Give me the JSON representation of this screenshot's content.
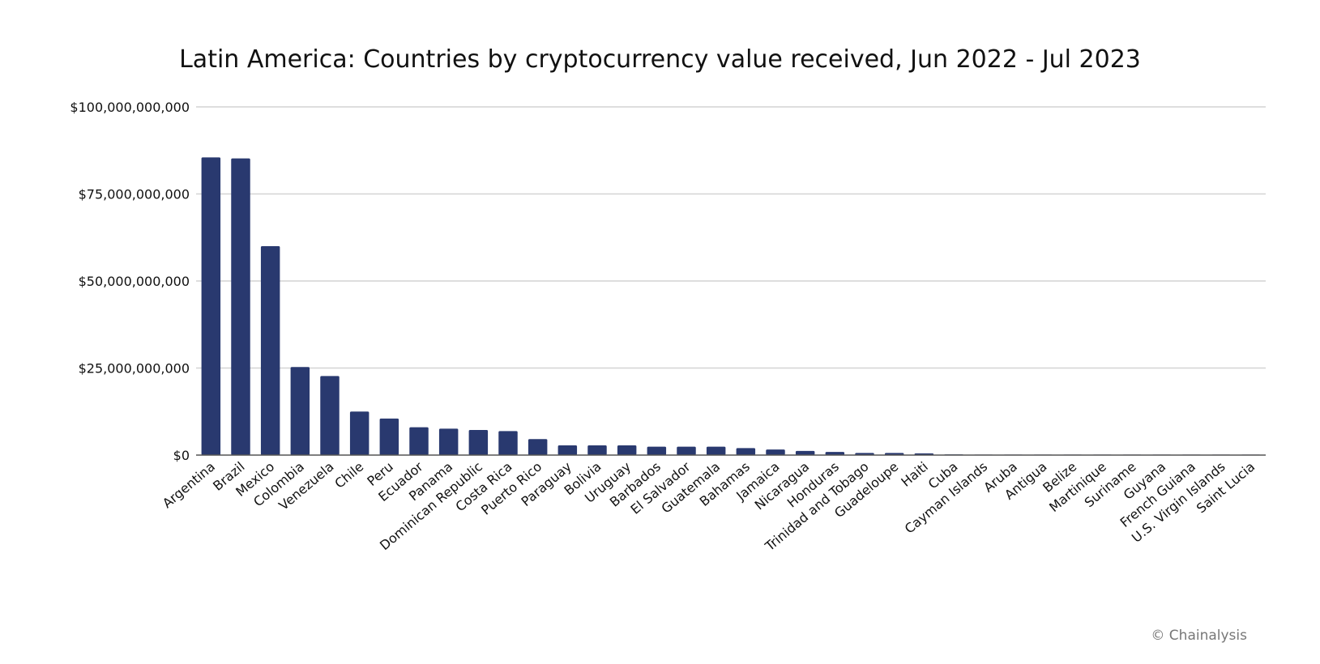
{
  "chart_data": {
    "type": "bar",
    "title": "Latin America: Countries by cryptocurrency value received, Jun 2022 - Jul 2023",
    "xlabel": "",
    "ylabel": "",
    "ylim": [
      0,
      100000000000
    ],
    "yticks": [
      {
        "value": 0,
        "label": "$0"
      },
      {
        "value": 25000000000,
        "label": "$25,000,000,000"
      },
      {
        "value": 50000000000,
        "label": "$50,000,000,000"
      },
      {
        "value": 75000000000,
        "label": "$75,000,000,000"
      },
      {
        "value": 100000000000,
        "label": "$100,000,000,000"
      }
    ],
    "grid": true,
    "bar_color": "#29396f",
    "categories": [
      "Argentina",
      "Brazil",
      "Mexico",
      "Colombia",
      "Venezuela",
      "Chile",
      "Peru",
      "Ecuador",
      "Panama",
      "Dominican Republic",
      "Costa Rica",
      "Puerto Rico",
      "Paraguay",
      "Bolivia",
      "Uruguay",
      "Barbados",
      "El Salvador",
      "Guatemala",
      "Bahamas",
      "Jamaica",
      "Nicaragua",
      "Honduras",
      "Trinidad and Tobago",
      "Guadeloupe",
      "Haiti",
      "Cuba",
      "Cayman Islands",
      "Aruba",
      "Antigua",
      "Belize",
      "Martinique",
      "Suriname",
      "Guyana",
      "French Guiana",
      "U.S. Virgin Islands",
      "Saint Lucia"
    ],
    "values": [
      85500000000,
      85200000000,
      60000000000,
      25300000000,
      22700000000,
      12500000000,
      10500000000,
      8000000000,
      7600000000,
      7200000000,
      6900000000,
      4600000000,
      2800000000,
      2800000000,
      2800000000,
      2400000000,
      2400000000,
      2400000000,
      2000000000,
      1600000000,
      1200000000,
      900000000,
      600000000,
      600000000,
      500000000,
      200000000,
      150000000,
      150000000,
      50000000,
      40000000,
      30000000,
      30000000,
      20000000,
      20000000,
      10000000,
      10000000
    ]
  },
  "credit": "© Chainalysis"
}
